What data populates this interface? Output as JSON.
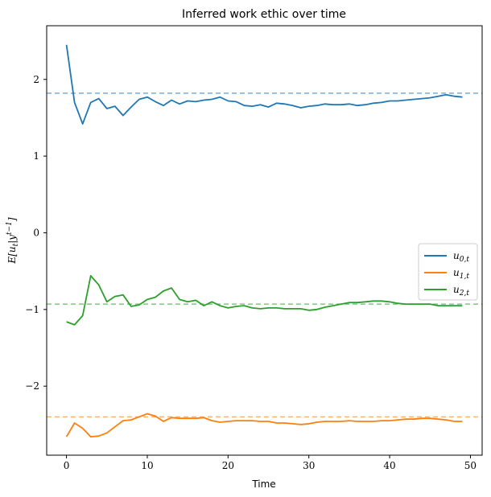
{
  "chart_data": {
    "type": "line",
    "title": "Inferred work ethic over time",
    "xlabel": "Time",
    "ylabel": "E[u_t|y^{t-1}]",
    "xlim": [
      -2.45,
      51.45
    ],
    "ylim": [
      -2.9,
      2.7
    ],
    "xticks": [
      0,
      10,
      20,
      30,
      40,
      50
    ],
    "yticks": [
      -2,
      -1,
      0,
      1,
      2
    ],
    "ytick_labels": [
      "−2",
      "−1",
      "0",
      "1",
      "2"
    ],
    "grid": false,
    "legend_position": "right",
    "x": [
      0,
      1,
      2,
      3,
      4,
      5,
      6,
      7,
      8,
      9,
      10,
      11,
      12,
      13,
      14,
      15,
      16,
      17,
      18,
      19,
      20,
      21,
      22,
      23,
      24,
      25,
      26,
      27,
      28,
      29,
      30,
      31,
      32,
      33,
      34,
      35,
      36,
      37,
      38,
      39,
      40,
      41,
      42,
      43,
      44,
      45,
      46,
      47,
      48,
      49
    ],
    "series": [
      {
        "name": "u0,t",
        "legend_main": "u",
        "legend_sub": "0,t",
        "color": "#1f77b4",
        "values": [
          2.45,
          1.7,
          1.42,
          1.7,
          1.75,
          1.62,
          1.65,
          1.53,
          1.64,
          1.74,
          1.77,
          1.71,
          1.66,
          1.73,
          1.68,
          1.72,
          1.71,
          1.73,
          1.74,
          1.77,
          1.72,
          1.71,
          1.66,
          1.65,
          1.67,
          1.64,
          1.69,
          1.68,
          1.66,
          1.63,
          1.65,
          1.66,
          1.68,
          1.67,
          1.67,
          1.68,
          1.66,
          1.67,
          1.69,
          1.7,
          1.72,
          1.72,
          1.73,
          1.74,
          1.75,
          1.76,
          1.78,
          1.8,
          1.78,
          1.77
        ]
      },
      {
        "name": "u1,t",
        "legend_main": "u",
        "legend_sub": "1,t",
        "color": "#ff7f0e",
        "values": [
          -2.66,
          -2.48,
          -2.55,
          -2.66,
          -2.65,
          -2.61,
          -2.53,
          -2.45,
          -2.44,
          -2.4,
          -2.36,
          -2.39,
          -2.46,
          -2.41,
          -2.42,
          -2.42,
          -2.42,
          -2.41,
          -2.45,
          -2.47,
          -2.46,
          -2.45,
          -2.45,
          -2.45,
          -2.46,
          -2.46,
          -2.48,
          -2.48,
          -2.49,
          -2.5,
          -2.49,
          -2.47,
          -2.46,
          -2.46,
          -2.46,
          -2.45,
          -2.46,
          -2.46,
          -2.46,
          -2.45,
          -2.45,
          -2.44,
          -2.43,
          -2.43,
          -2.42,
          -2.42,
          -2.43,
          -2.44,
          -2.46,
          -2.46
        ]
      },
      {
        "name": "u2,t",
        "legend_main": "u",
        "legend_sub": "2,t",
        "color": "#2ca02c",
        "values": [
          -1.16,
          -1.2,
          -1.08,
          -0.56,
          -0.68,
          -0.9,
          -0.83,
          -0.81,
          -0.96,
          -0.94,
          -0.87,
          -0.84,
          -0.76,
          -0.72,
          -0.87,
          -0.9,
          -0.88,
          -0.95,
          -0.9,
          -0.95,
          -0.98,
          -0.96,
          -0.95,
          -0.98,
          -0.99,
          -0.98,
          -0.98,
          -0.99,
          -0.99,
          -0.99,
          -1.01,
          -1.0,
          -0.97,
          -0.95,
          -0.93,
          -0.91,
          -0.91,
          -0.9,
          -0.89,
          -0.89,
          -0.9,
          -0.92,
          -0.93,
          -0.93,
          -0.93,
          -0.93,
          -0.95,
          -0.95,
          -0.95,
          -0.95
        ]
      }
    ],
    "reference_lines": [
      {
        "y": 1.82,
        "color": "#1f77b4",
        "style": "dashed"
      },
      {
        "y": -2.4,
        "color": "#ff7f0e",
        "style": "dashed"
      },
      {
        "y": -0.93,
        "color": "#2ca02c",
        "style": "dashed"
      }
    ]
  }
}
